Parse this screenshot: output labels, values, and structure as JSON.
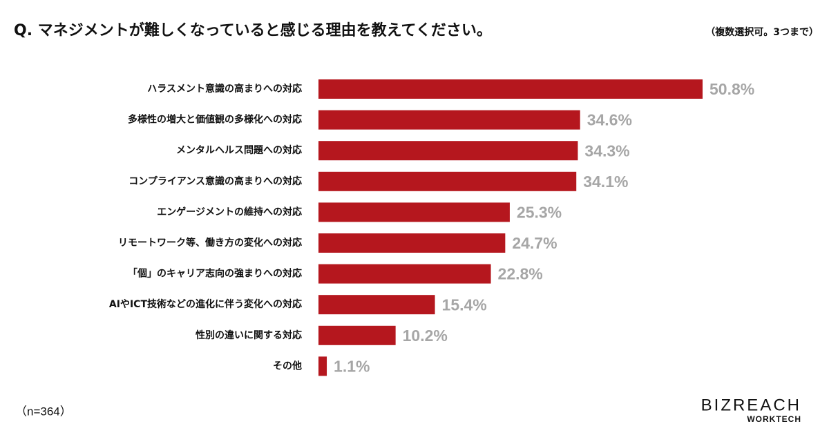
{
  "chart_data": {
    "type": "bar",
    "orientation": "horizontal",
    "title": "Q. マネジメントが難しくなっていると感じる理由を教えてください。",
    "subtitle": "（複数選択可。3つまで）",
    "categories": [
      "ハラスメント意識の高まりへの対応",
      "多様性の増大と価値観の多様化への対応",
      "メンタルヘルス問題への対応",
      "コンプライアンス意識の高まりへの対応",
      "エンゲージメントの維持への対応",
      "リモートワーク等、働き方の変化への対応",
      "「個」のキャリア志向の強まりへの対応",
      "AIやICT技術などの進化に伴う変化への対応",
      "性別の違いに関する対応",
      "その他"
    ],
    "values": [
      50.8,
      34.6,
      34.3,
      34.1,
      25.3,
      24.7,
      22.8,
      15.4,
      10.2,
      1.1
    ],
    "value_labels": [
      "50.8%",
      "34.6%",
      "34.3%",
      "34.1%",
      "25.3%",
      "24.7%",
      "22.8%",
      "15.4%",
      "10.2%",
      "1.1%"
    ],
    "color": "#b5171e",
    "note": "（n=364）",
    "logo": {
      "brand": "BIZREACH",
      "sub": "WORKTECH"
    }
  }
}
